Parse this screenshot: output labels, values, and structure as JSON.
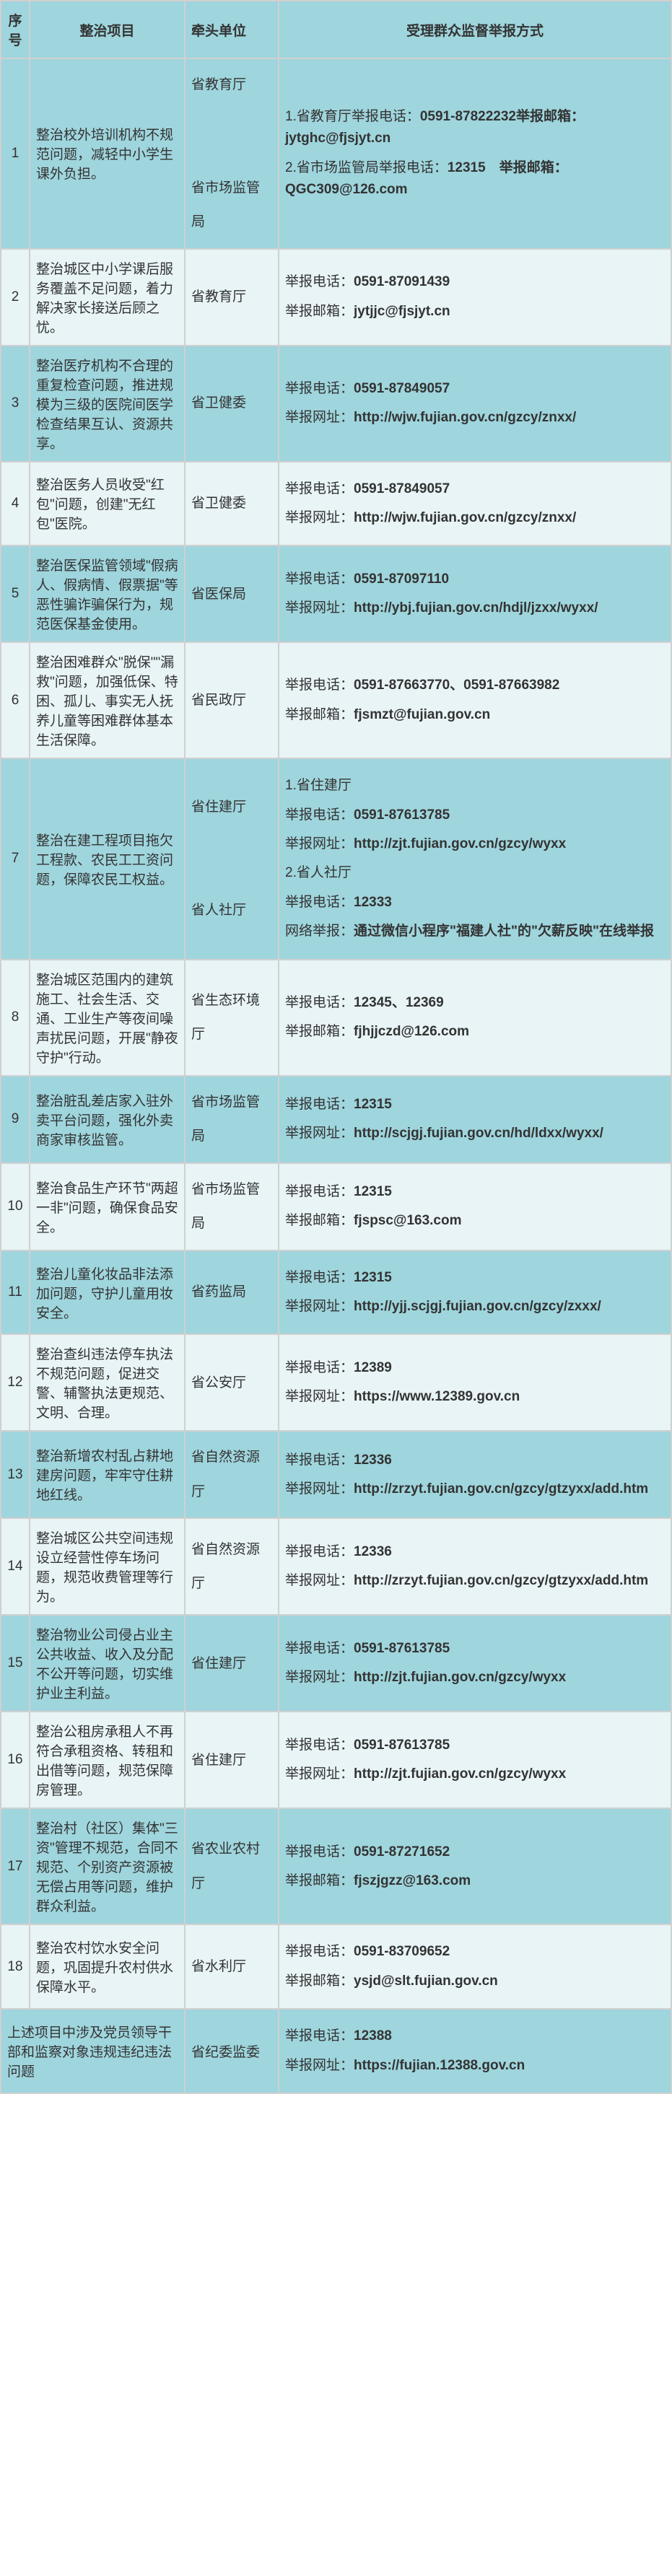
{
  "headers": {
    "num": "序号",
    "item": "整治项目",
    "dept": "牵头单位",
    "report": "受理群众监督举报方式"
  },
  "rows": [
    {
      "num": "1",
      "item": "整治校外培训机构不规范问题，减轻中小学生课外负担。",
      "dept": "省教育厅\n\n省市场监管局",
      "report": [
        "1.省教育厅举报电话：0591-87822232举报邮箱：jytghc@fjsjyt.cn",
        "2.省市场监管局举报电话：12315　举报邮箱：QGC309@126.com"
      ]
    },
    {
      "num": "2",
      "item": "整治城区中小学课后服务覆盖不足问题，着力解决家长接送后顾之忧。",
      "dept": "省教育厅",
      "report": [
        "举报电话：0591-87091439",
        "举报邮箱：jytjjc@fjsjyt.cn"
      ]
    },
    {
      "num": "3",
      "item": "整治医疗机构不合理的重复检查问题，推进规模为三级的医院间医学检查结果互认、资源共享。",
      "dept": "省卫健委",
      "report": [
        "举报电话：0591-87849057",
        "举报网址：http://wjw.fujian.gov.cn/gzcy/znxx/"
      ]
    },
    {
      "num": "4",
      "item": "整治医务人员收受\"红包\"问题，创建\"无红包\"医院。",
      "dept": "省卫健委",
      "report": [
        "举报电话：0591-87849057",
        "举报网址：http://wjw.fujian.gov.cn/gzcy/znxx/"
      ]
    },
    {
      "num": "5",
      "item": "整治医保监管领域\"假病人、假病情、假票据\"等恶性骗诈骗保行为，规范医保基金使用。",
      "dept": "省医保局",
      "report": [
        "举报电话：0591-87097110",
        "举报网址：http://ybj.fujian.gov.cn/hdjl/jzxx/wyxx/"
      ]
    },
    {
      "num": "6",
      "item": "整治困难群众\"脱保\"\"漏救\"问题，加强低保、特困、孤儿、事实无人抚养儿童等困难群体基本生活保障。",
      "dept": "省民政厅",
      "report": [
        "举报电话：0591-87663770、0591-87663982",
        "举报邮箱：fjsmzt@fujian.gov.cn"
      ]
    },
    {
      "num": "7",
      "item": "整治在建工程项目拖欠工程款、农民工工资问题，保障农民工权益。",
      "dept": "省住建厅\n\n省人社厅",
      "report": [
        "1.省住建厅",
        "举报电话：0591-87613785",
        "举报网址：http://zjt.fujian.gov.cn/gzcy/wyxx",
        "2.省人社厅",
        "举报电话：12333",
        "网络举报：通过微信小程序\"福建人社\"的\"欠薪反映\"在线举报"
      ]
    },
    {
      "num": "8",
      "item": "整治城区范围内的建筑施工、社会生活、交通、工业生产等夜间噪声扰民问题，开展\"静夜守护\"行动。",
      "dept": "省生态环境厅",
      "report": [
        "举报电话：12345、12369",
        "举报邮箱：fjhjjczd@126.com"
      ]
    },
    {
      "num": "9",
      "item": "整治脏乱差店家入驻外卖平台问题，强化外卖商家审核监管。",
      "dept": "省市场监管局",
      "report": [
        "举报电话：12315",
        "举报网址：http://scjgj.fujian.gov.cn/hd/ldxx/wyxx/"
      ]
    },
    {
      "num": "10",
      "item": "整治食品生产环节\"两超一非\"问题，确保食品安全。",
      "dept": "省市场监管局",
      "report": [
        "举报电话：12315",
        "举报邮箱：fjspsc@163.com"
      ]
    },
    {
      "num": "11",
      "item": "整治儿童化妆品非法添加问题，守护儿童用妆安全。",
      "dept": "省药监局",
      "report": [
        "举报电话：12315",
        "举报网址：http://yjj.scjgj.fujian.gov.cn/gzcy/zxxx/"
      ]
    },
    {
      "num": "12",
      "item": "整治查纠违法停车执法不规范问题，促进交警、辅警执法更规范、文明、合理。",
      "dept": "省公安厅",
      "report": [
        "举报电话：12389",
        "举报网址：https://www.12389.gov.cn"
      ]
    },
    {
      "num": "13",
      "item": "整治新增农村乱占耕地建房问题，牢牢守住耕地红线。",
      "dept": "省自然资源厅",
      "report": [
        "举报电话：12336",
        "举报网址：http://zrzyt.fujian.gov.cn/gzcy/gtzyxx/add.htm"
      ]
    },
    {
      "num": "14",
      "item": "整治城区公共空间违规设立经营性停车场问题，规范收费管理等行为。",
      "dept": "省自然资源厅",
      "report": [
        "举报电话：12336",
        "举报网址：http://zrzyt.fujian.gov.cn/gzcy/gtzyxx/add.htm"
      ]
    },
    {
      "num": "15",
      "item": "整治物业公司侵占业主公共收益、收入及分配不公开等问题，切实维护业主利益。",
      "dept": "省住建厅",
      "report": [
        "举报电话：0591-87613785",
        "举报网址：http://zjt.fujian.gov.cn/gzcy/wyxx"
      ]
    },
    {
      "num": "16",
      "item": "整治公租房承租人不再符合承租资格、转租和出借等问题，规范保障房管理。",
      "dept": "省住建厅",
      "report": [
        "举报电话：0591-87613785",
        "举报网址：http://zjt.fujian.gov.cn/gzcy/wyxx"
      ]
    },
    {
      "num": "17",
      "item": "整治村（社区）集体\"三资\"管理不规范，合同不规范、个别资产资源被无偿占用等问题，维护群众利益。",
      "dept": "省农业农村厅",
      "report": [
        "举报电话：0591-87271652",
        "举报邮箱：fjszjgzz@163.com"
      ]
    },
    {
      "num": "18",
      "item": "整治农村饮水安全问题，巩固提升农村供水保障水平。",
      "dept": "省水利厅",
      "report": [
        "举报电话：0591-83709652",
        "举报邮箱：ysjd@slt.fujian.gov.cn"
      ]
    }
  ],
  "footer": {
    "item": "上述项目中涉及党员领导干部和监察对象违规违纪违法问题",
    "dept": "省纪委监委",
    "report": [
      "举报电话：12388",
      "举报网址：https://fujian.12388.gov.cn"
    ]
  }
}
